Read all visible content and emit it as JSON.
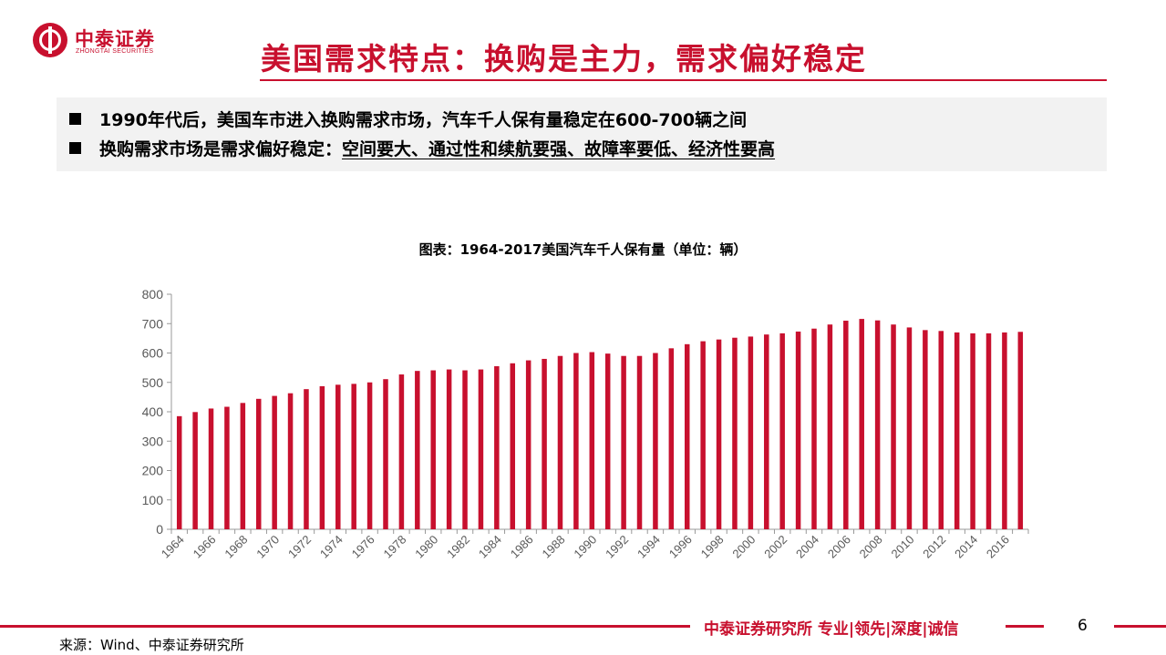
{
  "header": {
    "logo_cn": "中泰证券",
    "logo_en": "ZHONGTAI SECURITIES",
    "title": "美国需求特点：换购是主力，需求偏好稳定"
  },
  "bullets": [
    {
      "text": "1990年代后，美国车市进入换购需求市场，汽车千人保有量稳定在600-700辆之间"
    },
    {
      "prefix": "换购需求市场是需求偏好稳定：",
      "underlined": "空间要大、通过性和续航要强、故障率要低、经济性要高"
    }
  ],
  "footer": {
    "brand": "中泰证券研究所 专业|领先|深度|诚信",
    "page": "6",
    "source": "来源：Wind、中泰证券研究所"
  },
  "colors": {
    "accent": "#c8102e",
    "bar": "#c8102e"
  },
  "chart_data": {
    "type": "bar",
    "title": "图表：1964-2017美国汽车千人保有量（单位：辆）",
    "years": [
      1964,
      1965,
      1966,
      1967,
      1968,
      1969,
      1970,
      1971,
      1972,
      1973,
      1974,
      1975,
      1976,
      1977,
      1978,
      1979,
      1980,
      1981,
      1982,
      1983,
      1984,
      1985,
      1986,
      1987,
      1988,
      1989,
      1990,
      1991,
      1992,
      1993,
      1994,
      1995,
      1996,
      1997,
      1998,
      1999,
      2000,
      2001,
      2002,
      2003,
      2004,
      2005,
      2006,
      2007,
      2008,
      2009,
      2010,
      2011,
      2012,
      2013,
      2014,
      2015,
      2016,
      2017
    ],
    "x_tick_labels": [
      "1964",
      "1966",
      "1968",
      "1970",
      "1972",
      "1974",
      "1976",
      "1978",
      "1980",
      "1982",
      "1984",
      "1986",
      "1988",
      "1990",
      "1992",
      "1994",
      "1996",
      "1998",
      "2000",
      "2002",
      "2004",
      "2006",
      "2008",
      "2010",
      "2012",
      "2014",
      "2016"
    ],
    "values": [
      385,
      399,
      411,
      417,
      430,
      444,
      454,
      463,
      477,
      487,
      492,
      495,
      500,
      511,
      527,
      539,
      541,
      544,
      541,
      544,
      555,
      565,
      575,
      580,
      590,
      600,
      603,
      598,
      590,
      590,
      600,
      616,
      630,
      640,
      646,
      652,
      656,
      663,
      667,
      673,
      683,
      697,
      710,
      716,
      711,
      697,
      687,
      678,
      675,
      670,
      667,
      667,
      670,
      672
    ],
    "y_ticks": [
      0,
      100,
      200,
      300,
      400,
      500,
      600,
      700,
      800
    ],
    "ylim": [
      0,
      800
    ],
    "legend": "none"
  }
}
